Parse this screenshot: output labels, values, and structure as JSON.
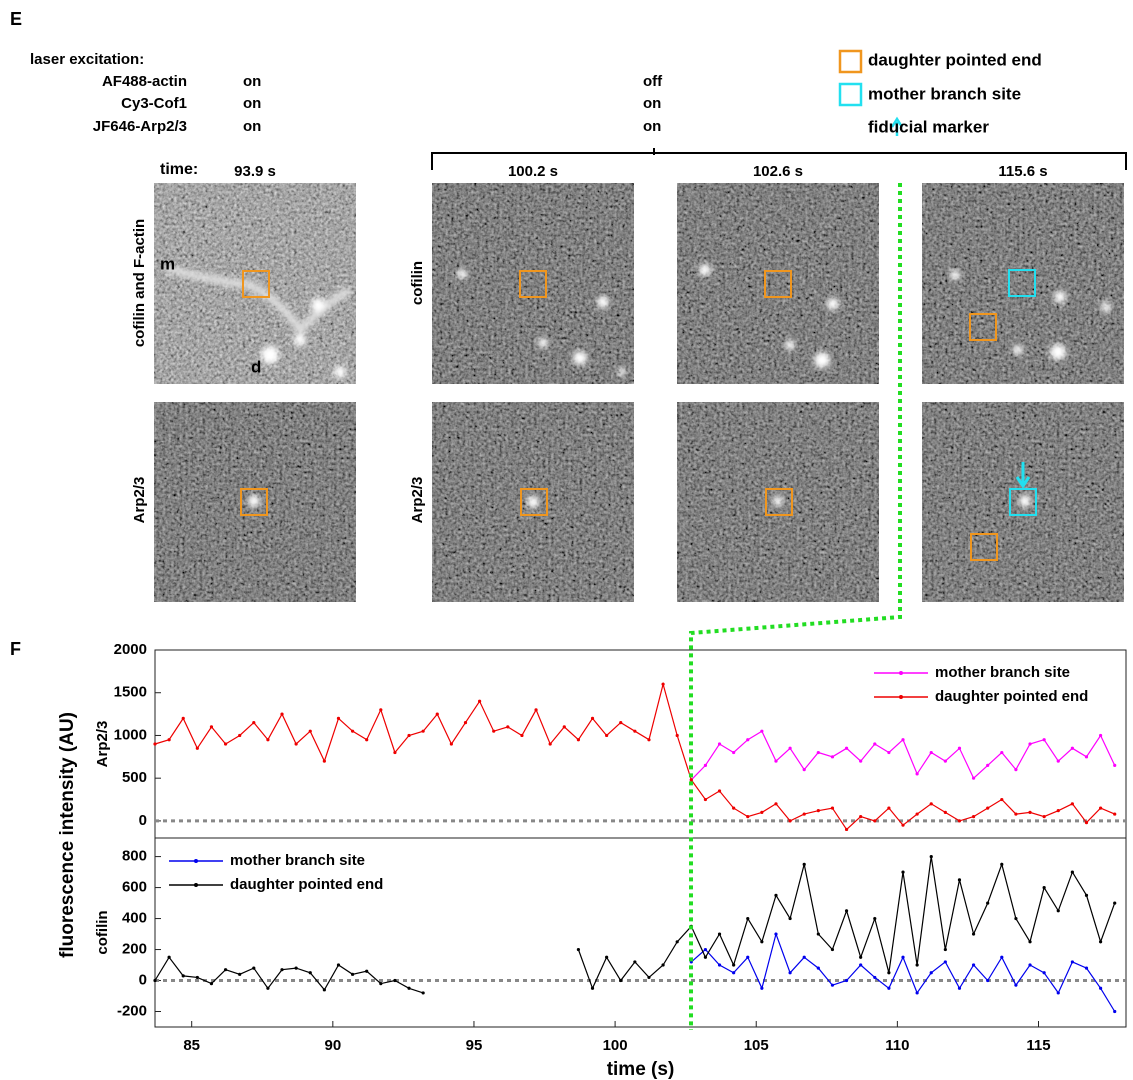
{
  "panel_e": {
    "label": "E",
    "laser_title": "laser excitation:",
    "laser_rows": [
      {
        "name": "AF488-actin",
        "before": "on",
        "after": "off"
      },
      {
        "name": "Cy3-Cof1",
        "before": "on",
        "after": "on"
      },
      {
        "name": "JF646-Arp2/3",
        "before": "on",
        "after": "on"
      }
    ],
    "legend": [
      {
        "label": "daughter pointed end",
        "color": "#f0961e"
      },
      {
        "label": "mother branch site",
        "color": "#22e0f0"
      },
      {
        "label": "fiducial marker",
        "color": "#22e0f0"
      }
    ],
    "time_label": "time:",
    "times": [
      "93.9 s",
      "100.2 s",
      "102.6 s",
      "115.6 s"
    ],
    "row_labels": [
      "cofilin and F-actin",
      "Arp2/3",
      "cofilin",
      "Arp2/3"
    ],
    "image_labels": [
      "m",
      "d"
    ]
  },
  "panel_f": {
    "label": "F",
    "y_label": "fluorescence intensity (AU)"
  },
  "chart_data": [
    {
      "type": "line",
      "y_label": "Arp2/3",
      "legend": "upper right",
      "zero_line": true,
      "xlim": [
        83.7,
        118.1
      ],
      "ylim": [
        -200,
        2000
      ],
      "yticks": [
        0,
        500,
        1000,
        1500,
        2000
      ],
      "x": [
        83.7,
        84.2,
        84.7,
        85.2,
        85.7,
        86.2,
        86.7,
        87.2,
        87.7,
        88.2,
        88.7,
        89.2,
        89.7,
        90.2,
        90.7,
        91.2,
        91.7,
        92.2,
        92.7,
        93.2,
        93.7,
        94.2,
        94.7,
        95.2,
        95.7,
        96.2,
        96.7,
        97.2,
        97.7,
        98.2,
        98.7,
        99.2,
        99.7,
        100.2,
        100.7,
        101.2,
        101.7,
        102.2,
        102.7,
        103.2,
        103.7,
        104.2,
        104.7,
        105.2,
        105.7,
        106.2,
        106.7,
        107.2,
        107.7,
        108.2,
        108.7,
        109.2,
        109.7,
        110.2,
        110.7,
        111.2,
        111.7,
        112.2,
        112.7,
        113.2,
        113.7,
        114.2,
        114.7,
        115.2,
        115.7,
        116.2,
        116.7,
        117.2,
        117.7
      ],
      "series": [
        {
          "name": "mother branch site",
          "color": "#ff00ff",
          "values": [
            null,
            null,
            null,
            null,
            null,
            null,
            null,
            null,
            null,
            null,
            null,
            null,
            null,
            null,
            null,
            null,
            null,
            null,
            null,
            null,
            null,
            null,
            null,
            null,
            null,
            null,
            null,
            null,
            null,
            null,
            null,
            null,
            null,
            null,
            null,
            null,
            null,
            null,
            480,
            650,
            900,
            800,
            950,
            1050,
            700,
            850,
            600,
            800,
            750,
            850,
            700,
            900,
            800,
            950,
            550,
            800,
            700,
            850,
            500,
            650,
            800,
            600,
            900,
            950,
            700,
            850,
            750,
            1000,
            650
          ]
        },
        {
          "name": "daughter pointed end",
          "color": "#ee0000",
          "values": [
            900,
            950,
            1200,
            850,
            1100,
            900,
            1000,
            1150,
            950,
            1250,
            900,
            1050,
            700,
            1200,
            1050,
            950,
            1300,
            800,
            1000,
            1050,
            1250,
            900,
            1150,
            1400,
            1050,
            1100,
            1000,
            1300,
            900,
            1100,
            950,
            1200,
            1000,
            1150,
            1050,
            950,
            1600,
            1000,
            480,
            250,
            350,
            150,
            50,
            100,
            200,
            0,
            80,
            120,
            150,
            -100,
            50,
            0,
            150,
            -50,
            80,
            200,
            100,
            0,
            50,
            150,
            250,
            80,
            100,
            50,
            120,
            200,
            -20,
            150,
            80
          ]
        }
      ]
    },
    {
      "type": "line",
      "y_label": "cofilin",
      "x_label": "time (s)",
      "legend": "upper left",
      "zero_line": true,
      "xlim": [
        83.7,
        118.1
      ],
      "ylim": [
        -300,
        920
      ],
      "xticks": [
        85,
        90,
        95,
        100,
        105,
        110,
        115
      ],
      "yticks": [
        -200,
        0,
        200,
        400,
        600,
        800
      ],
      "x": [
        83.7,
        84.2,
        84.7,
        85.2,
        85.7,
        86.2,
        86.7,
        87.2,
        87.7,
        88.2,
        88.7,
        89.2,
        89.7,
        90.2,
        90.7,
        91.2,
        91.7,
        92.2,
        92.7,
        93.2,
        93.7,
        94.2,
        94.7,
        95.2,
        95.7,
        96.2,
        96.7,
        97.2,
        97.7,
        98.2,
        98.7,
        99.2,
        99.7,
        100.2,
        100.7,
        101.2,
        101.7,
        102.2,
        102.7,
        103.2,
        103.7,
        104.2,
        104.7,
        105.2,
        105.7,
        106.2,
        106.7,
        107.2,
        107.7,
        108.2,
        108.7,
        109.2,
        109.7,
        110.2,
        110.7,
        111.2,
        111.7,
        112.2,
        112.7,
        113.2,
        113.7,
        114.2,
        114.7,
        115.2,
        115.7,
        116.2,
        116.7,
        117.2,
        117.7
      ],
      "series": [
        {
          "name": "mother branch site",
          "color": "#0000ee",
          "values": [
            null,
            null,
            null,
            null,
            null,
            null,
            null,
            null,
            null,
            null,
            null,
            null,
            null,
            null,
            null,
            null,
            null,
            null,
            null,
            null,
            null,
            null,
            null,
            null,
            null,
            null,
            null,
            null,
            null,
            null,
            null,
            null,
            null,
            null,
            null,
            null,
            null,
            null,
            120,
            200,
            100,
            50,
            150,
            -50,
            300,
            50,
            150,
            80,
            -30,
            0,
            100,
            20,
            -50,
            150,
            -80,
            50,
            120,
            -50,
            100,
            0,
            150,
            -30,
            100,
            50,
            -80,
            120,
            80,
            -50,
            -200
          ]
        },
        {
          "name": "daughter pointed end",
          "color": "#000000",
          "values": [
            0,
            150,
            30,
            20,
            -20,
            70,
            40,
            80,
            -50,
            70,
            80,
            50,
            -60,
            100,
            40,
            60,
            -20,
            0,
            -50,
            -80,
            null,
            null,
            null,
            null,
            null,
            null,
            null,
            null,
            null,
            null,
            200,
            -50,
            150,
            0,
            120,
            20,
            100,
            250,
            350,
            150,
            300,
            100,
            400,
            250,
            550,
            400,
            750,
            300,
            200,
            450,
            150,
            400,
            50,
            700,
            100,
            800,
            200,
            650,
            300,
            500,
            750,
            400,
            250,
            600,
            450,
            700,
            550,
            250,
            500
          ]
        }
      ]
    }
  ]
}
